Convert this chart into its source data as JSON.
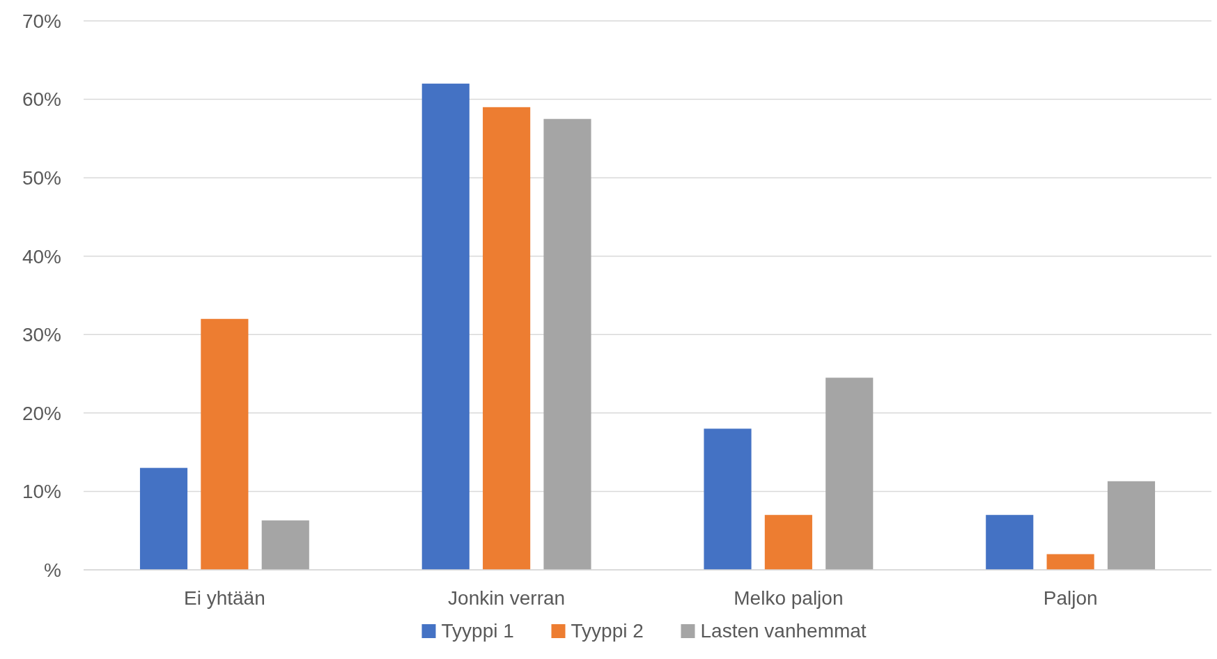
{
  "chart_data": {
    "type": "bar",
    "categories": [
      "Ei yhtään",
      "Jonkin verran",
      "Melko paljon",
      "Paljon"
    ],
    "series": [
      {
        "name": "Tyyppi 1",
        "color": "#4472c4",
        "values": [
          13,
          62,
          18,
          7
        ]
      },
      {
        "name": "Tyyppi 2",
        "color": "#ed7d31",
        "values": [
          32,
          59,
          7,
          2
        ]
      },
      {
        "name": "Lasten vanhemmat",
        "color": "#a5a5a5",
        "values": [
          6.3,
          57.5,
          24.5,
          11.3
        ]
      }
    ],
    "ylim": [
      0,
      70
    ],
    "yticks": [
      {
        "value": 0,
        "label": "%"
      },
      {
        "value": 10,
        "label": "10%"
      },
      {
        "value": 20,
        "label": "20%"
      },
      {
        "value": 30,
        "label": "30%"
      },
      {
        "value": 40,
        "label": "40%"
      },
      {
        "value": 50,
        "label": "50%"
      },
      {
        "value": 60,
        "label": "60%"
      },
      {
        "value": 70,
        "label": "70%"
      }
    ],
    "grid": "y",
    "legend": "bottom"
  }
}
